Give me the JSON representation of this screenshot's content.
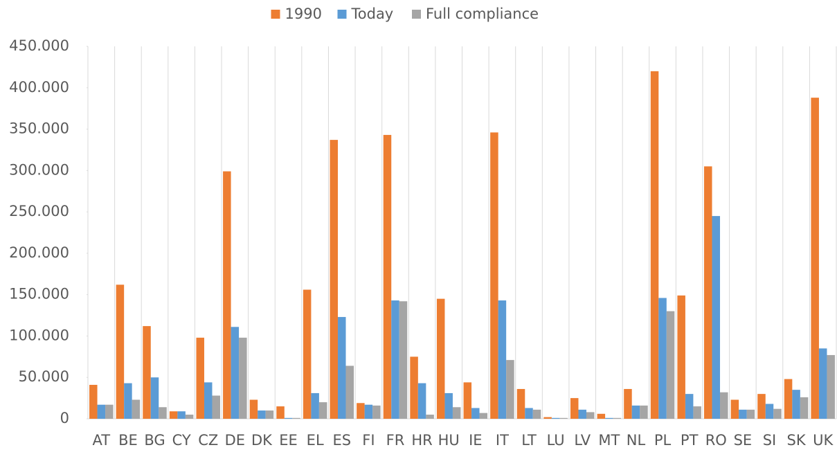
{
  "chart_data": {
    "type": "bar",
    "categories": [
      "AT",
      "BE",
      "BG",
      "CY",
      "CZ",
      "DE",
      "DK",
      "EE",
      "EL",
      "ES",
      "FI",
      "FR",
      "HR",
      "HU",
      "IE",
      "IT",
      "LT",
      "LU",
      "LV",
      "MT",
      "NL",
      "PL",
      "PT",
      "RO",
      "SE",
      "SI",
      "SK",
      "UK"
    ],
    "series": [
      {
        "name": "1990",
        "color": "#ed7d31",
        "values": [
          41000,
          162000,
          112000,
          9000,
          98000,
          299000,
          23000,
          15000,
          156000,
          337000,
          19000,
          343000,
          75000,
          145000,
          44000,
          346000,
          36000,
          2000,
          25000,
          6000,
          36000,
          420000,
          149000,
          305000,
          23000,
          30000,
          48000,
          388000
        ]
      },
      {
        "name": "Today",
        "color": "#5b9bd5",
        "values": [
          17000,
          43000,
          50000,
          9000,
          44000,
          111000,
          10000,
          1000,
          31000,
          123000,
          17000,
          143000,
          43000,
          31000,
          13000,
          143000,
          13000,
          1000,
          11000,
          1000,
          16000,
          146000,
          30000,
          245000,
          11000,
          18000,
          35000,
          85000
        ]
      },
      {
        "name": "Full compliance",
        "color": "#a5a5a5",
        "values": [
          17000,
          23000,
          14000,
          5000,
          28000,
          98000,
          10000,
          1000,
          20000,
          64000,
          16000,
          142000,
          5000,
          14000,
          7000,
          71000,
          11000,
          1000,
          8000,
          1000,
          16000,
          130000,
          15000,
          32000,
          11000,
          12000,
          26000,
          77000
        ]
      }
    ],
    "ylim": [
      0,
      450000
    ],
    "yticks": [
      0,
      {
        "value": 50000,
        "label": "50.000"
      },
      {
        "value": 100000,
        "label": "100.000"
      },
      {
        "value": 150000,
        "label": "150.000"
      },
      {
        "value": 200000,
        "label": "200.000"
      },
      {
        "value": 250000,
        "label": "250.000"
      },
      {
        "value": 300000,
        "label": "300.000"
      },
      {
        "value": 350000,
        "label": "350.000"
      },
      {
        "value": 400000,
        "label": "400.000"
      },
      {
        "value": 450000,
        "label": "450.000"
      }
    ],
    "grid": true,
    "legend": "top"
  }
}
